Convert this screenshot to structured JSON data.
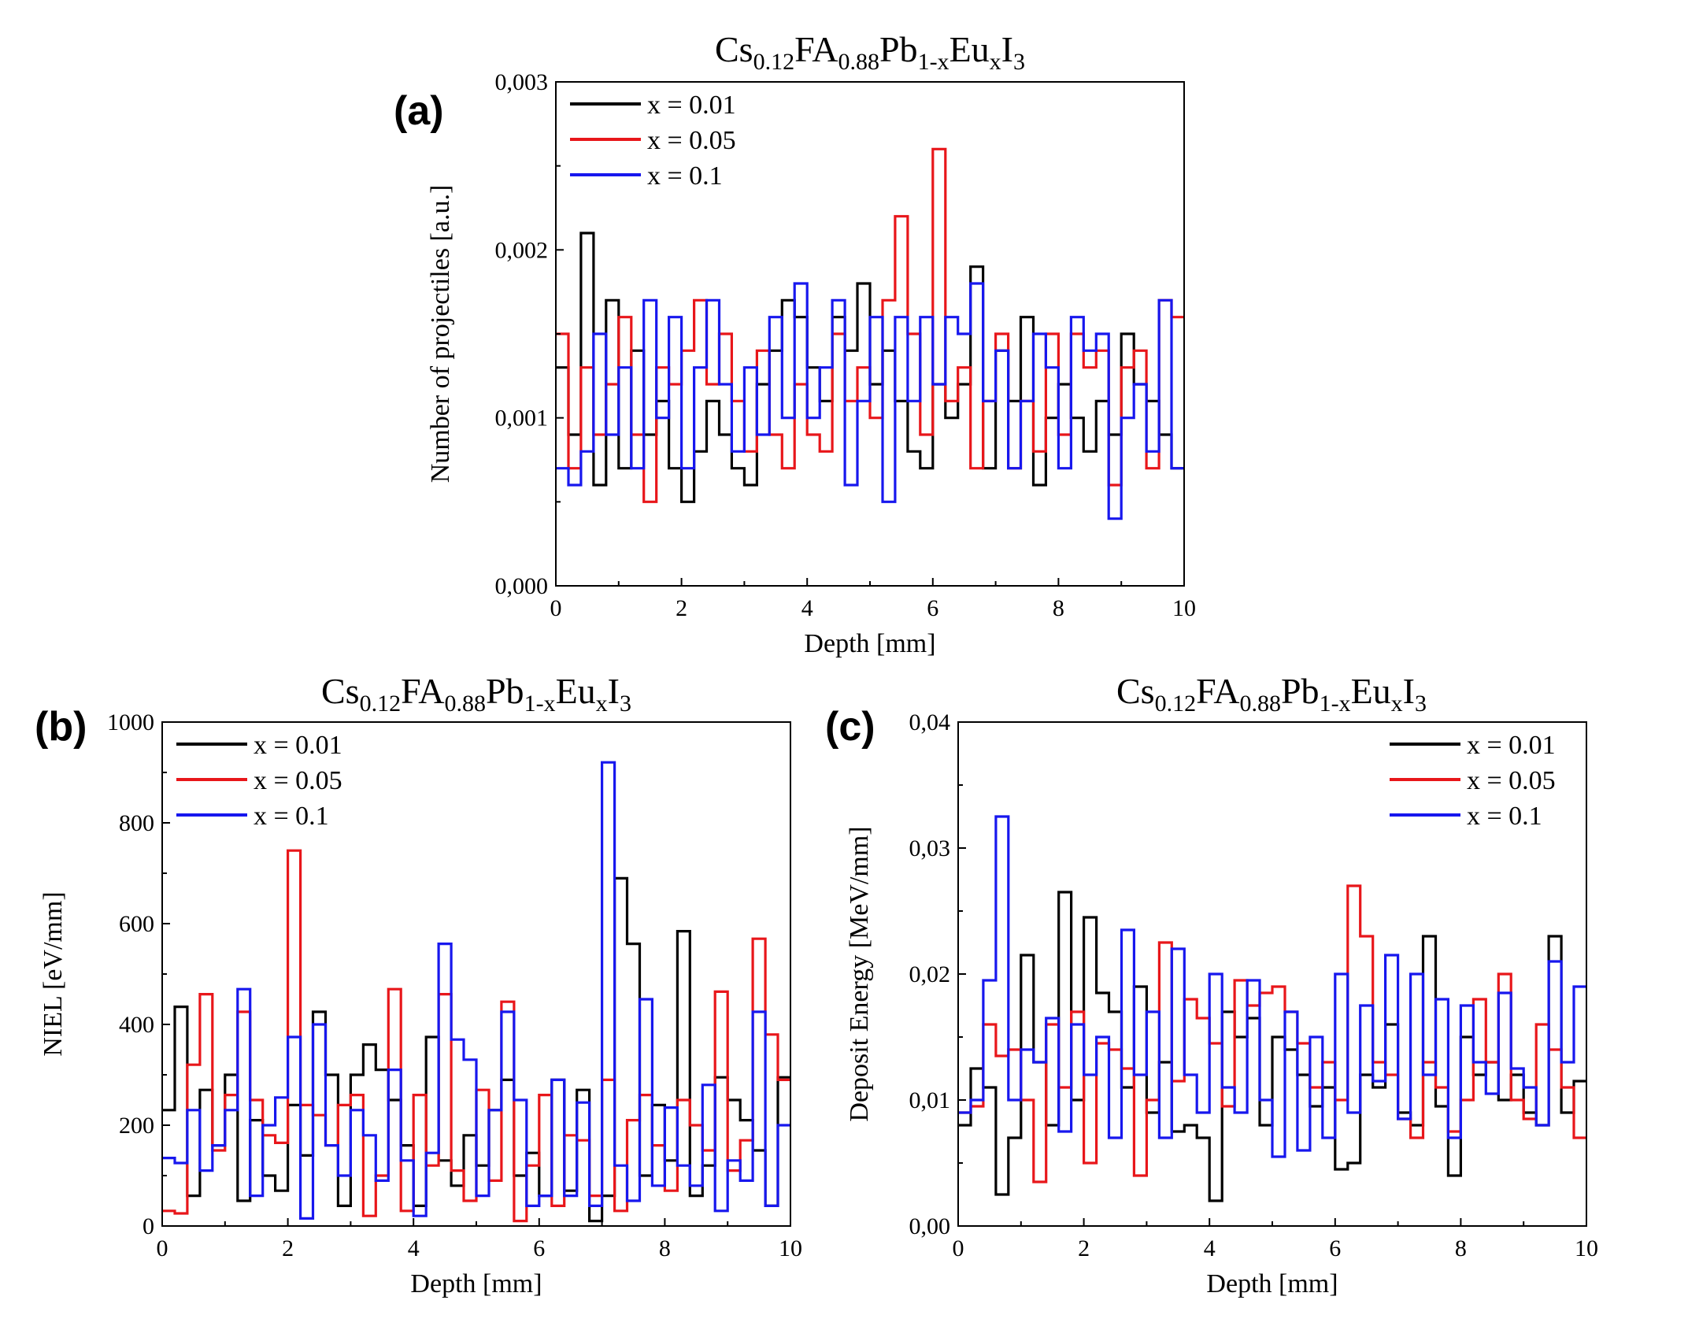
{
  "chart_data": [
    {
      "type": "line",
      "panel_label": "(a)",
      "title": "Cs0.12FA0.88Pb1-xEuxI3",
      "title_parts": [
        "Cs",
        "0.12",
        "FA",
        "0.88",
        "Pb",
        "1-x",
        "Eu",
        "x",
        "I",
        "3"
      ],
      "xlabel": "Depth [mm]",
      "ylabel": "Number of projectiles [a.u.]",
      "xlim": [
        0,
        10
      ],
      "ylim": [
        0,
        0.003
      ],
      "xticks": [
        "0",
        "2",
        "4",
        "6",
        "8",
        "10"
      ],
      "yticks": [
        "0,000",
        "0,001",
        "0,002",
        "0,003"
      ],
      "legend_position": "top-left",
      "step": true,
      "x": [
        0.0,
        0.2,
        0.4,
        0.6,
        0.8,
        1.0,
        1.2,
        1.4,
        1.6,
        1.8,
        2.0,
        2.2,
        2.4,
        2.6,
        2.8,
        3.0,
        3.2,
        3.4,
        3.6,
        3.8,
        4.0,
        4.2,
        4.4,
        4.6,
        4.8,
        5.0,
        5.2,
        5.4,
        5.6,
        5.8,
        6.0,
        6.2,
        6.4,
        6.6,
        6.8,
        7.0,
        7.2,
        7.4,
        7.6,
        7.8,
        8.0,
        8.2,
        8.4,
        8.6,
        8.8,
        9.0,
        9.2,
        9.4,
        9.6,
        9.8
      ],
      "series": [
        {
          "name": "x = 0.01",
          "color": "#000000",
          "values": [
            0.0013,
            0.0009,
            0.0021,
            0.0006,
            0.0017,
            0.0007,
            0.0014,
            0.0009,
            0.0011,
            0.0007,
            0.0005,
            0.0008,
            0.0011,
            0.0009,
            0.0007,
            0.0006,
            0.0012,
            0.0014,
            0.0017,
            0.0016,
            0.0013,
            0.0011,
            0.0016,
            0.0014,
            0.0018,
            0.0012,
            0.0014,
            0.0011,
            0.0008,
            0.0007,
            0.0012,
            0.001,
            0.0012,
            0.0019,
            0.0007,
            0.0014,
            0.0011,
            0.0016,
            0.0006,
            0.001,
            0.0012,
            0.001,
            0.0008,
            0.0011,
            0.0009,
            0.0015,
            0.0012,
            0.0011,
            0.0009,
            0.0007
          ]
        },
        {
          "name": "x = 0.05",
          "color": "#e8161a",
          "values": [
            0.0015,
            0.0007,
            0.0013,
            0.0009,
            0.0012,
            0.0016,
            0.0009,
            0.0005,
            0.0013,
            0.0012,
            0.0014,
            0.0017,
            0.0012,
            0.0015,
            0.0011,
            0.0008,
            0.0014,
            0.0009,
            0.0007,
            0.0012,
            0.0009,
            0.0008,
            0.0015,
            0.0011,
            0.0013,
            0.001,
            0.0017,
            0.0022,
            0.0015,
            0.0009,
            0.0026,
            0.0011,
            0.0013,
            0.0007,
            0.0011,
            0.0015,
            0.0007,
            0.0011,
            0.0008,
            0.0015,
            0.0009,
            0.0015,
            0.0013,
            0.0014,
            0.0006,
            0.0013,
            0.0014,
            0.0007,
            0.0017,
            0.0016
          ]
        },
        {
          "name": "x = 0.1",
          "color": "#1717ee",
          "values": [
            0.0007,
            0.0006,
            0.0008,
            0.0015,
            0.0009,
            0.0013,
            0.0007,
            0.0017,
            0.001,
            0.0016,
            0.0007,
            0.0013,
            0.0017,
            0.0012,
            0.0008,
            0.0013,
            0.0009,
            0.0016,
            0.001,
            0.0018,
            0.001,
            0.0013,
            0.0017,
            0.0006,
            0.0011,
            0.0016,
            0.0005,
            0.0016,
            0.0011,
            0.0016,
            0.0012,
            0.0016,
            0.0015,
            0.0018,
            0.0011,
            0.0014,
            0.0007,
            0.0011,
            0.0015,
            0.0013,
            0.0007,
            0.0016,
            0.0014,
            0.0015,
            0.0004,
            0.001,
            0.0012,
            0.0008,
            0.0017,
            0.0007
          ]
        }
      ]
    },
    {
      "type": "line",
      "panel_label": "(b)",
      "title": "Cs0.12FA0.88Pb1-xEuxI3",
      "title_parts": [
        "Cs",
        "0.12",
        "FA",
        "0.88",
        "Pb",
        "1-x",
        "Eu",
        "x",
        "I",
        "3"
      ],
      "xlabel": "Depth [mm]",
      "ylabel": "NIEL [eV/mm]",
      "xlim": [
        0,
        10
      ],
      "ylim": [
        0,
        1000
      ],
      "xticks": [
        "0",
        "2",
        "4",
        "6",
        "8",
        "10"
      ],
      "yticks": [
        "0",
        "200",
        "400",
        "600",
        "800",
        "1000"
      ],
      "legend_position": "top-left",
      "step": true,
      "x": [
        0.0,
        0.2,
        0.4,
        0.6,
        0.8,
        1.0,
        1.2,
        1.4,
        1.6,
        1.8,
        2.0,
        2.2,
        2.4,
        2.6,
        2.8,
        3.0,
        3.2,
        3.4,
        3.6,
        3.8,
        4.0,
        4.2,
        4.4,
        4.6,
        4.8,
        5.0,
        5.2,
        5.4,
        5.6,
        5.8,
        6.0,
        6.2,
        6.4,
        6.6,
        6.8,
        7.0,
        7.2,
        7.4,
        7.6,
        7.8,
        8.0,
        8.2,
        8.4,
        8.6,
        8.8,
        9.0,
        9.2,
        9.4,
        9.6,
        9.8
      ],
      "series": [
        {
          "name": "x = 0.01",
          "color": "#000000",
          "values": [
            230,
            435,
            60,
            270,
            160,
            300,
            50,
            210,
            100,
            70,
            240,
            140,
            425,
            300,
            40,
            300,
            360,
            310,
            250,
            160,
            40,
            375,
            130,
            80,
            180,
            120,
            230,
            290,
            100,
            145,
            60,
            290,
            70,
            270,
            10,
            60,
            690,
            560,
            100,
            240,
            130,
            585,
            60,
            120,
            295,
            250,
            210,
            150,
            40,
            295
          ]
        },
        {
          "name": "x = 0.05",
          "color": "#e8161a",
          "values": [
            30,
            25,
            320,
            460,
            150,
            260,
            425,
            250,
            180,
            165,
            745,
            240,
            220,
            160,
            240,
            260,
            20,
            100,
            470,
            30,
            260,
            120,
            460,
            110,
            50,
            270,
            90,
            445,
            10,
            120,
            260,
            40,
            180,
            170,
            60,
            290,
            30,
            210,
            260,
            160,
            70,
            250,
            200,
            150,
            465,
            110,
            170,
            570,
            380,
            290
          ]
        },
        {
          "name": "x = 0.1",
          "color": "#1717ee",
          "values": [
            135,
            125,
            230,
            110,
            160,
            230,
            470,
            60,
            200,
            255,
            375,
            15,
            400,
            160,
            100,
            230,
            180,
            90,
            310,
            130,
            20,
            145,
            560,
            370,
            330,
            60,
            230,
            425,
            250,
            40,
            60,
            290,
            60,
            245,
            40,
            920,
            120,
            50,
            450,
            80,
            235,
            120,
            80,
            280,
            30,
            130,
            90,
            425,
            40,
            200
          ]
        }
      ]
    },
    {
      "type": "line",
      "panel_label": "(c)",
      "title": "Cs0.12FA0.88Pb1-xEuxI3",
      "title_parts": [
        "Cs",
        "0.12",
        "FA",
        "0.88",
        "Pb",
        "1-x",
        "Eu",
        "x",
        "I",
        "3"
      ],
      "xlabel": "Depth [mm]",
      "ylabel": "Deposit Energy [MeV/mm]",
      "xlim": [
        0,
        10
      ],
      "ylim": [
        0,
        0.04
      ],
      "xticks": [
        "0",
        "2",
        "4",
        "6",
        "8",
        "10"
      ],
      "yticks": [
        "0,00",
        "0,01",
        "0,02",
        "0,03",
        "0,04"
      ],
      "legend_position": "top-right",
      "step": true,
      "x": [
        0.0,
        0.2,
        0.4,
        0.6,
        0.8,
        1.0,
        1.2,
        1.4,
        1.6,
        1.8,
        2.0,
        2.2,
        2.4,
        2.6,
        2.8,
        3.0,
        3.2,
        3.4,
        3.6,
        3.8,
        4.0,
        4.2,
        4.4,
        4.6,
        4.8,
        5.0,
        5.2,
        5.4,
        5.6,
        5.8,
        6.0,
        6.2,
        6.4,
        6.6,
        6.8,
        7.0,
        7.2,
        7.4,
        7.6,
        7.8,
        8.0,
        8.2,
        8.4,
        8.6,
        8.8,
        9.0,
        9.2,
        9.4,
        9.6,
        9.8
      ],
      "series": [
        {
          "name": "x = 0.01",
          "color": "#000000",
          "values": [
            0.008,
            0.0125,
            0.011,
            0.0025,
            0.007,
            0.0215,
            0.013,
            0.008,
            0.0265,
            0.01,
            0.0245,
            0.0185,
            0.017,
            0.011,
            0.019,
            0.009,
            0.013,
            0.0075,
            0.008,
            0.007,
            0.002,
            0.017,
            0.015,
            0.0165,
            0.008,
            0.015,
            0.014,
            0.012,
            0.0095,
            0.011,
            0.0045,
            0.005,
            0.012,
            0.011,
            0.016,
            0.009,
            0.008,
            0.023,
            0.0095,
            0.004,
            0.015,
            0.012,
            0.013,
            0.01,
            0.012,
            0.009,
            0.008,
            0.023,
            0.009,
            0.0115
          ]
        },
        {
          "name": "x = 0.05",
          "color": "#e8161a",
          "values": [
            0.009,
            0.0095,
            0.016,
            0.0135,
            0.014,
            0.01,
            0.0035,
            0.016,
            0.011,
            0.017,
            0.005,
            0.0145,
            0.014,
            0.0125,
            0.004,
            0.01,
            0.0225,
            0.0115,
            0.018,
            0.0165,
            0.0145,
            0.0095,
            0.0195,
            0.0175,
            0.0185,
            0.019,
            0.017,
            0.0145,
            0.011,
            0.013,
            0.01,
            0.027,
            0.023,
            0.013,
            0.012,
            0.0085,
            0.007,
            0.013,
            0.011,
            0.0075,
            0.01,
            0.018,
            0.013,
            0.02,
            0.01,
            0.0085,
            0.016,
            0.014,
            0.011,
            0.007
          ]
        },
        {
          "name": "x = 0.1",
          "color": "#1717ee",
          "values": [
            0.009,
            0.01,
            0.0195,
            0.0325,
            0.01,
            0.014,
            0.013,
            0.0165,
            0.0075,
            0.016,
            0.012,
            0.015,
            0.007,
            0.0235,
            0.012,
            0.017,
            0.007,
            0.022,
            0.012,
            0.009,
            0.02,
            0.011,
            0.009,
            0.0195,
            0.01,
            0.0055,
            0.017,
            0.006,
            0.015,
            0.007,
            0.02,
            0.009,
            0.0175,
            0.0115,
            0.0215,
            0.0085,
            0.02,
            0.012,
            0.018,
            0.007,
            0.0175,
            0.013,
            0.0105,
            0.0185,
            0.0125,
            0.011,
            0.008,
            0.021,
            0.013,
            0.019
          ]
        }
      ]
    }
  ]
}
